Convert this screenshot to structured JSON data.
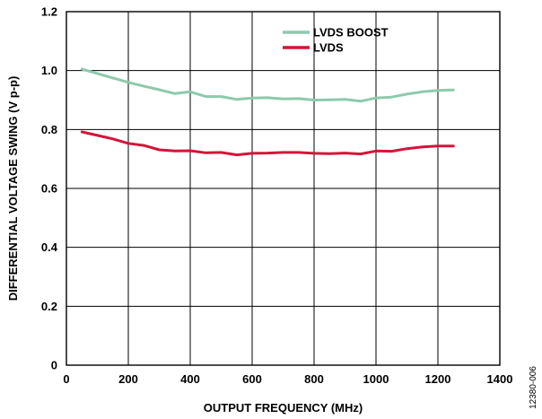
{
  "chart_data": {
    "type": "line",
    "title": "",
    "xlabel": "OUTPUT FREQUENCY (MHz)",
    "ylabel": "DIFFERENTIAL VOLTAGE SWING (V p-p)",
    "xlim": [
      0,
      1400
    ],
    "ylim": [
      0,
      1.2
    ],
    "grid": true,
    "legend": "top-center",
    "x_ticks": [
      {
        "value": 0,
        "label": "0"
      },
      {
        "value": 200,
        "label": "200"
      },
      {
        "value": 400,
        "label": "400"
      },
      {
        "value": 600,
        "label": "600"
      },
      {
        "value": 800,
        "label": "800"
      },
      {
        "value": 1000,
        "label": "1000"
      },
      {
        "value": 1200,
        "label": "1200"
      },
      {
        "value": 1400,
        "label": "1400"
      }
    ],
    "y_ticks": [
      {
        "value": 0,
        "label": "0"
      },
      {
        "value": 0.2,
        "label": "0.2"
      },
      {
        "value": 0.4,
        "label": "0.4"
      },
      {
        "value": 0.6,
        "label": "0.6"
      },
      {
        "value": 0.8,
        "label": "0.8"
      },
      {
        "value": 1.0,
        "label": "1.0"
      },
      {
        "value": 1.2,
        "label": "1.2"
      }
    ],
    "series": [
      {
        "name": "LVDS BOOST",
        "color": "#8ec9ad",
        "x": [
          50,
          100,
          150,
          200,
          250,
          300,
          350,
          400,
          450,
          500,
          550,
          600,
          650,
          700,
          750,
          800,
          850,
          900,
          950,
          1000,
          1050,
          1100,
          1150,
          1200,
          1250
        ],
        "y": [
          1.005,
          0.99,
          0.975,
          0.96,
          0.947,
          0.935,
          0.922,
          0.928,
          0.912,
          0.912,
          0.902,
          0.907,
          0.908,
          0.904,
          0.905,
          0.9,
          0.901,
          0.902,
          0.896,
          0.907,
          0.91,
          0.92,
          0.928,
          0.933,
          0.934
        ]
      },
      {
        "name": "LVDS",
        "color": "#d4143a",
        "x": [
          50,
          100,
          150,
          200,
          250,
          300,
          350,
          400,
          450,
          500,
          550,
          600,
          650,
          700,
          750,
          800,
          850,
          900,
          950,
          1000,
          1050,
          1100,
          1150,
          1200,
          1250
        ],
        "y": [
          0.792,
          0.78,
          0.768,
          0.753,
          0.746,
          0.731,
          0.727,
          0.728,
          0.721,
          0.722,
          0.714,
          0.719,
          0.72,
          0.722,
          0.722,
          0.719,
          0.718,
          0.72,
          0.717,
          0.727,
          0.726,
          0.735,
          0.741,
          0.744,
          0.744
        ]
      }
    ]
  },
  "figure_id": "12380-006"
}
